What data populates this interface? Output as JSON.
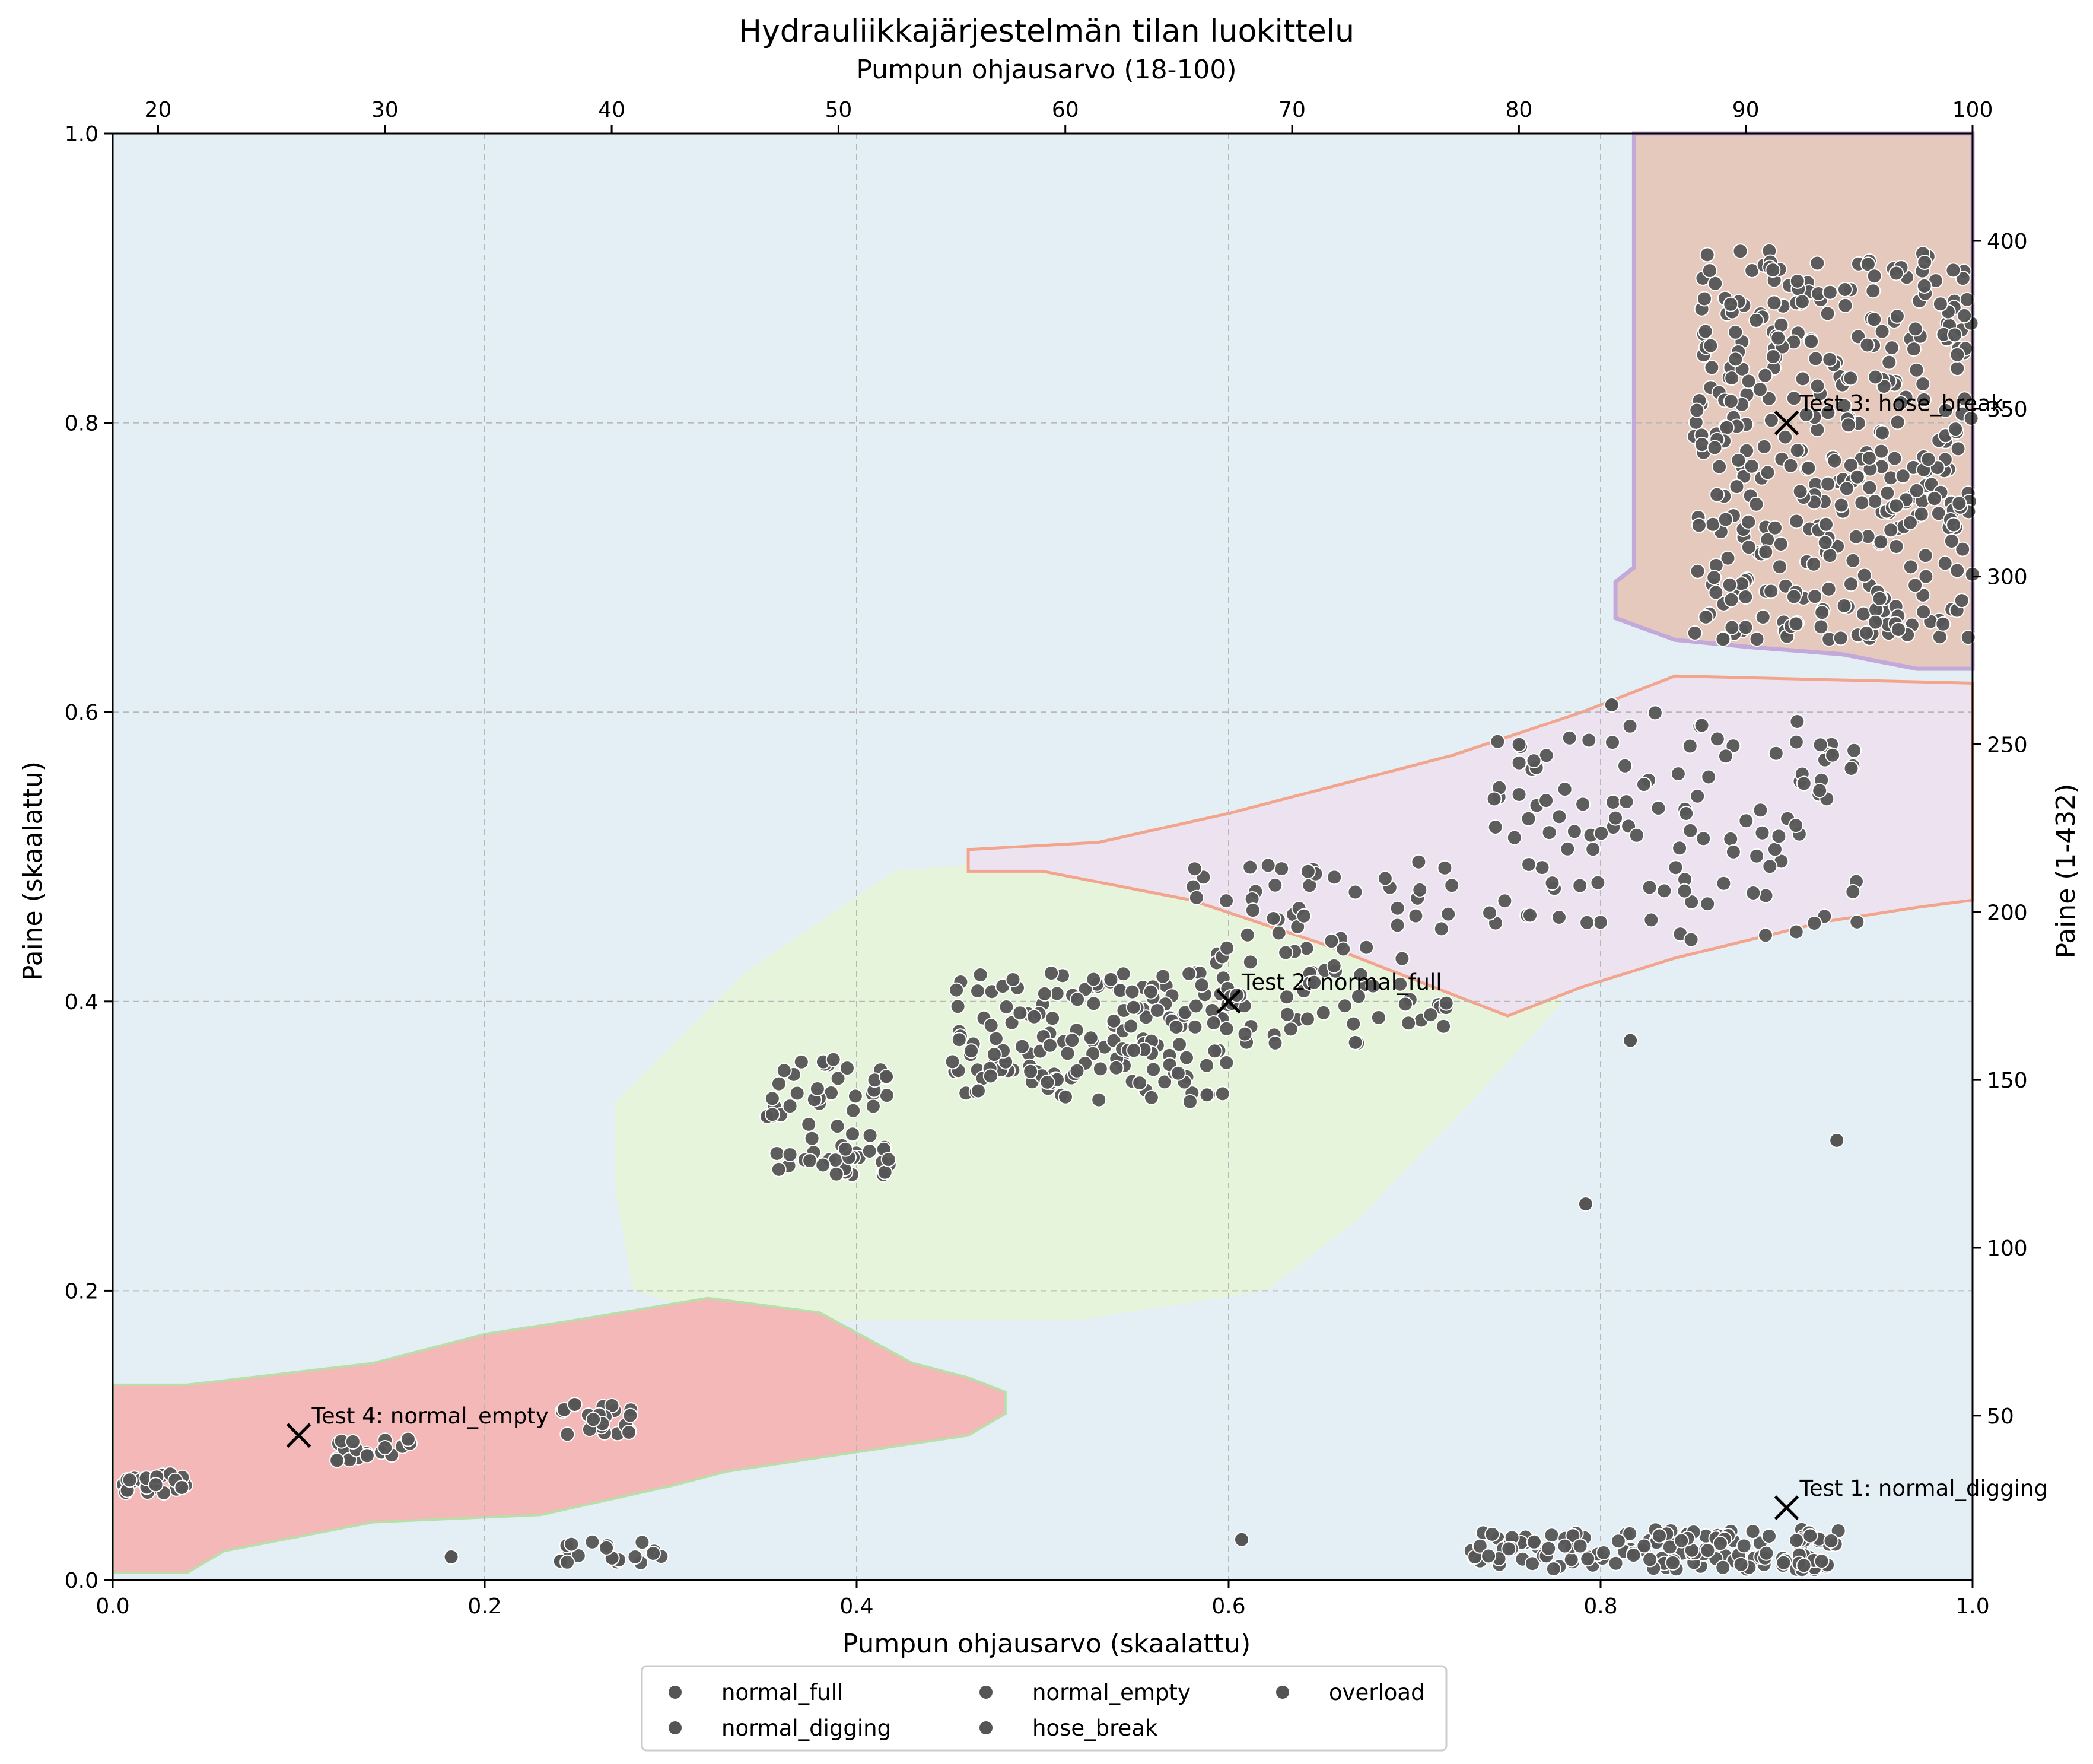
{
  "chart_data": {
    "type": "scatter",
    "title": "Hydrauliikkajärjestelmän tilan luokittelu",
    "xlabel": "Pumpun ohjausarvo (skaalattu)",
    "ylabel": "Paine (skaalattu)",
    "xlabel_top": "Pumpun ohjausarvo (18-100)",
    "ylabel_right": "Paine (1-432)",
    "xlim": [
      0,
      1
    ],
    "ylim": [
      0,
      1
    ],
    "x_ticks": [
      "0.0",
      "0.2",
      "0.4",
      "0.6",
      "0.8",
      "1.0"
    ],
    "y_ticks": [
      "0.0",
      "0.2",
      "0.4",
      "0.6",
      "0.8",
      "1.0"
    ],
    "top_ticks": [
      "20",
      "30",
      "40",
      "50",
      "60",
      "70",
      "80",
      "90",
      "100"
    ],
    "right_ticks": [
      "50",
      "100",
      "150",
      "200",
      "250",
      "300",
      "350",
      "400"
    ],
    "grid": true,
    "legend_position": "bottom-center",
    "point_color": "#555555",
    "region_colors": {
      "background": "#e4eef5",
      "normal_full": "#e5f4da",
      "normal_empty": "#f4b8b9",
      "hose_break": "#e5c9bc",
      "overload": "#ede3f0"
    },
    "series": [
      {
        "name": "normal_full",
        "clusters": [
          {
            "x": [
              0.35,
              0.42
            ],
            "y": [
              0.28,
              0.36
            ],
            "n": 70
          },
          {
            "x": [
              0.45,
              0.6
            ],
            "y": [
              0.33,
              0.42
            ],
            "n": 170
          },
          {
            "x": [
              0.58,
              0.72
            ],
            "y": [
              0.37,
              0.5
            ],
            "n": 100
          }
        ]
      },
      {
        "name": "normal_digging",
        "clusters": [
          {
            "x": [
              0.73,
              0.93
            ],
            "y": [
              0.007,
              0.035
            ],
            "n": 150
          },
          {
            "x": [
              0.24,
              0.3
            ],
            "y": [
              0.012,
              0.028
            ],
            "n": 20
          }
        ]
      },
      {
        "name": "normal_empty",
        "clusters": [
          {
            "x": [
              0.0,
              0.04
            ],
            "y": [
              0.06,
              0.074
            ],
            "n": 25
          },
          {
            "x": [
              0.12,
              0.16
            ],
            "y": [
              0.082,
              0.098
            ],
            "n": 20
          },
          {
            "x": [
              0.24,
              0.28
            ],
            "y": [
              0.1,
              0.122
            ],
            "n": 25
          }
        ]
      },
      {
        "name": "hose_break",
        "clusters": [
          {
            "x": [
              0.85,
              1.0
            ],
            "y": [
              0.65,
              0.92
            ],
            "n": 420
          }
        ]
      },
      {
        "name": "overload",
        "clusters": [
          {
            "x": [
              0.74,
              0.94
            ],
            "y": [
              0.44,
              0.6
            ],
            "n": 120
          }
        ]
      }
    ],
    "outliers": [
      {
        "x": 0.792,
        "y": 0.26
      },
      {
        "x": 0.927,
        "y": 0.304
      },
      {
        "x": 0.816,
        "y": 0.373
      },
      {
        "x": 0.607,
        "y": 0.028
      },
      {
        "x": 0.182,
        "y": 0.016
      },
      {
        "x": 0.806,
        "y": 0.605
      }
    ],
    "annotations": [
      {
        "label": "Test 1: normal_digging",
        "x": 0.9,
        "y": 0.05
      },
      {
        "label": "Test 2: normal_full",
        "x": 0.6,
        "y": 0.4
      },
      {
        "label": "Test 3: hose_break",
        "x": 0.9,
        "y": 0.8
      },
      {
        "label": "Test 4: normal_empty",
        "x": 0.1,
        "y": 0.1
      }
    ],
    "legend": [
      "normal_full",
      "normal_empty",
      "overload",
      "normal_digging",
      "hose_break"
    ]
  }
}
